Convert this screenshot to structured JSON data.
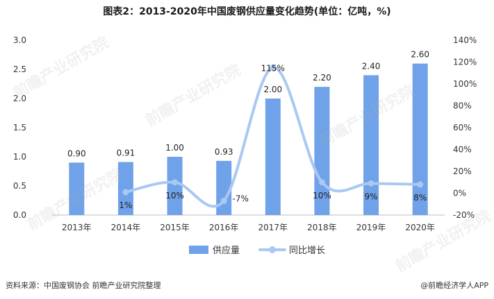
{
  "title": "图表2：2013-2020年中国废钢供应量变化趋势(单位：亿吨，%)",
  "source": "资料来源：中国废钢协会 前瞻产业研究院整理",
  "brand": "@前瞻经济学人APP",
  "watermark": "前瞻产业研究院",
  "colors": {
    "bar": "#6fa2e8",
    "line": "#a9c8f2"
  },
  "chart_data": {
    "type": "bar",
    "categories": [
      "2013年",
      "2014年",
      "2015年",
      "2016年",
      "2017年",
      "2018年",
      "2019年",
      "2020年"
    ],
    "series": [
      {
        "name": "供应量",
        "type": "bar",
        "axis": "left",
        "values": [
          0.9,
          0.91,
          1.0,
          0.93,
          2.0,
          2.2,
          2.4,
          2.6
        ],
        "labels": [
          "0.90",
          "0.91",
          "1.00",
          "0.93",
          "2.00",
          "2.20",
          "2.40",
          "2.60"
        ]
      },
      {
        "name": "同比增长",
        "type": "line",
        "axis": "right",
        "smooth": true,
        "values": [
          null,
          1,
          10,
          -7,
          115,
          10,
          9,
          8
        ],
        "labels": [
          "",
          "1%",
          "10%",
          "-7%",
          "115%",
          "10%",
          "9%",
          "8%"
        ]
      }
    ],
    "ylim_left": [
      0,
      3.0
    ],
    "yticks_left": [
      "0.0",
      "0.5",
      "1.0",
      "1.5",
      "2.0",
      "2.5",
      "3.0"
    ],
    "ylim_right": [
      -20,
      140
    ],
    "yticks_right": [
      "-20%",
      "0%",
      "20%",
      "40%",
      "60%",
      "80%",
      "100%",
      "120%",
      "140%"
    ],
    "legend_position": "bottom",
    "grid": false
  }
}
